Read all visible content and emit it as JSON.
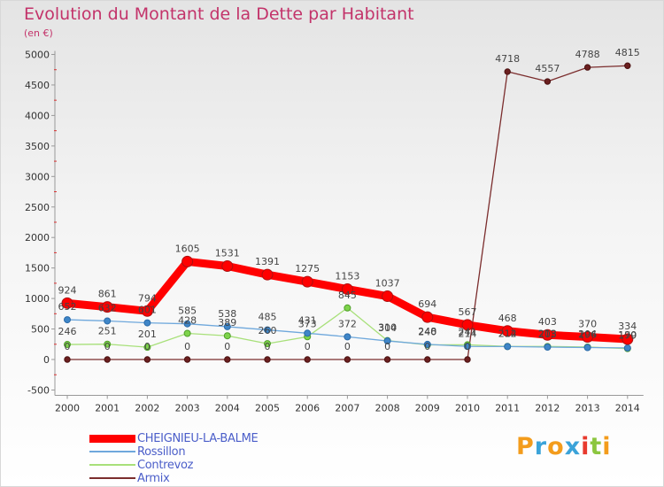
{
  "chart_data": {
    "type": "line",
    "title": "Evolution du Montant de la Dette par Habitant",
    "subtitle": "(en €)",
    "x": [
      "2000",
      "2001",
      "2002",
      "2003",
      "2004",
      "2005",
      "2006",
      "2007",
      "2008",
      "2009",
      "2010",
      "2011",
      "2012",
      "2013",
      "2014"
    ],
    "ylim": [
      -500,
      5000
    ],
    "yticks": [
      -500,
      0,
      500,
      1000,
      1500,
      2000,
      2500,
      3000,
      3500,
      4000,
      4500,
      5000
    ],
    "grid": false,
    "legend_position": "bottom-left",
    "series": [
      {
        "name": "CHEIGNIEU-LA-BALME",
        "color": "#ff0000",
        "values": [
          924,
          861,
          794,
          1605,
          1531,
          1391,
          1275,
          1153,
          1037,
          694,
          567,
          468,
          403,
          370,
          334
        ],
        "labels": [
          "924",
          "861",
          "794",
          "1605",
          "1531",
          "1391",
          "1275",
          "1153",
          "1037",
          "694",
          "567",
          "468",
          "403",
          "370",
          "334"
        ]
      },
      {
        "name": "Rossillon",
        "color": "#6fa8dc",
        "values": [
          652,
          632,
          601,
          585,
          538,
          485,
          431,
          372,
          304,
          248,
          214,
          212,
          203,
          196,
          190
        ],
        "labels": [
          "652",
          "632",
          "601",
          "585",
          "538",
          "485",
          "431",
          "372",
          "304",
          "248",
          "214",
          "212",
          "203",
          "196",
          "190"
        ]
      },
      {
        "name": "Contrevoz",
        "color": "#a8e07a",
        "values": [
          246,
          251,
          201,
          428,
          389,
          260,
          373,
          845,
          310,
          240,
          241,
          214,
          213,
          204,
          179
        ],
        "labels": [
          "246",
          "251",
          "201",
          "428",
          "389",
          "260",
          "373",
          "845",
          "310",
          "240",
          "241",
          "214",
          "213",
          "204",
          "179"
        ]
      },
      {
        "name": "Armix",
        "color": "#7b2d2d",
        "values": [
          0,
          0,
          0,
          0,
          0,
          0,
          0,
          0,
          0,
          0,
          0,
          4718,
          4557,
          4788,
          4815
        ],
        "labels": [
          "0",
          "0",
          "0",
          "0",
          "0",
          "0",
          "0",
          "0",
          "0",
          "0",
          "0",
          "4718",
          "4557",
          "4788",
          "4815"
        ]
      }
    ]
  },
  "logo": {
    "text": "Proxiti",
    "letters": [
      {
        "ch": "P",
        "color": "#f39c1c"
      },
      {
        "ch": "r",
        "color": "#3ba3d9"
      },
      {
        "ch": "o",
        "color": "#f39c1c"
      },
      {
        "ch": "x",
        "color": "#3ba3d9"
      },
      {
        "ch": "i",
        "color": "#e83a2e"
      },
      {
        "ch": "t",
        "color": "#8cc63f"
      },
      {
        "ch": "i",
        "color": "#f39c1c"
      }
    ]
  }
}
